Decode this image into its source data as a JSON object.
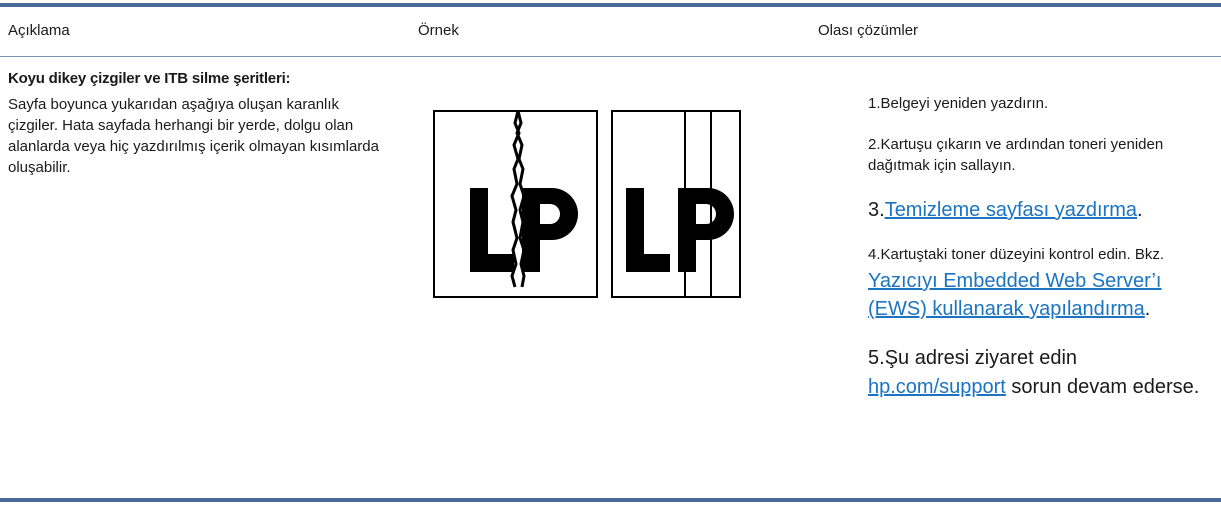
{
  "header": {
    "columns": [
      "Açıklama",
      "Örnek",
      "Olası çözümler"
    ]
  },
  "rows": [
    {
      "description": {
        "title": "Koyu dikey çizgiler ve ITB silme şeritleri:",
        "text": "Sayfa boyunca yukarıdan aşağıya oluşan karanlık çizgiler. Hata sayfada herhangi bir yerde, dolgu olan alanlarda veya hiç yazdırılmış içerik olmayan kısımlarda oluşabilir."
      },
      "solutions": [
        {
          "number": "1.",
          "parts": [
            {
              "text": "Belgeyi yeniden yazdırın."
            }
          ]
        },
        {
          "number": "2.",
          "parts": [
            {
              "text": "Kartuşu çıkarın ve ardından toneri yeniden dağıtmak için sallayın."
            }
          ]
        },
        {
          "number": "3.",
          "parts": [
            {
              "link": "Temizleme sayfası yazdırma"
            },
            {
              "text": "."
            }
          ]
        },
        {
          "number": "4.",
          "parts": [
            {
              "text": "Kartuştaki toner düzeyini kontrol edin. Bkz. "
            },
            {
              "link": "Yazıcıyı Embedded Web Server’ı (EWS) kullanarak yapılandırma"
            },
            {
              "text": "."
            }
          ]
        },
        {
          "number": "5.",
          "parts": [
            {
              "text": "Şu adresi ziyaret edin "
            },
            {
              "link": "hp.com/support"
            },
            {
              "text": " sorun devam ederse."
            }
          ]
        }
      ]
    }
  ]
}
